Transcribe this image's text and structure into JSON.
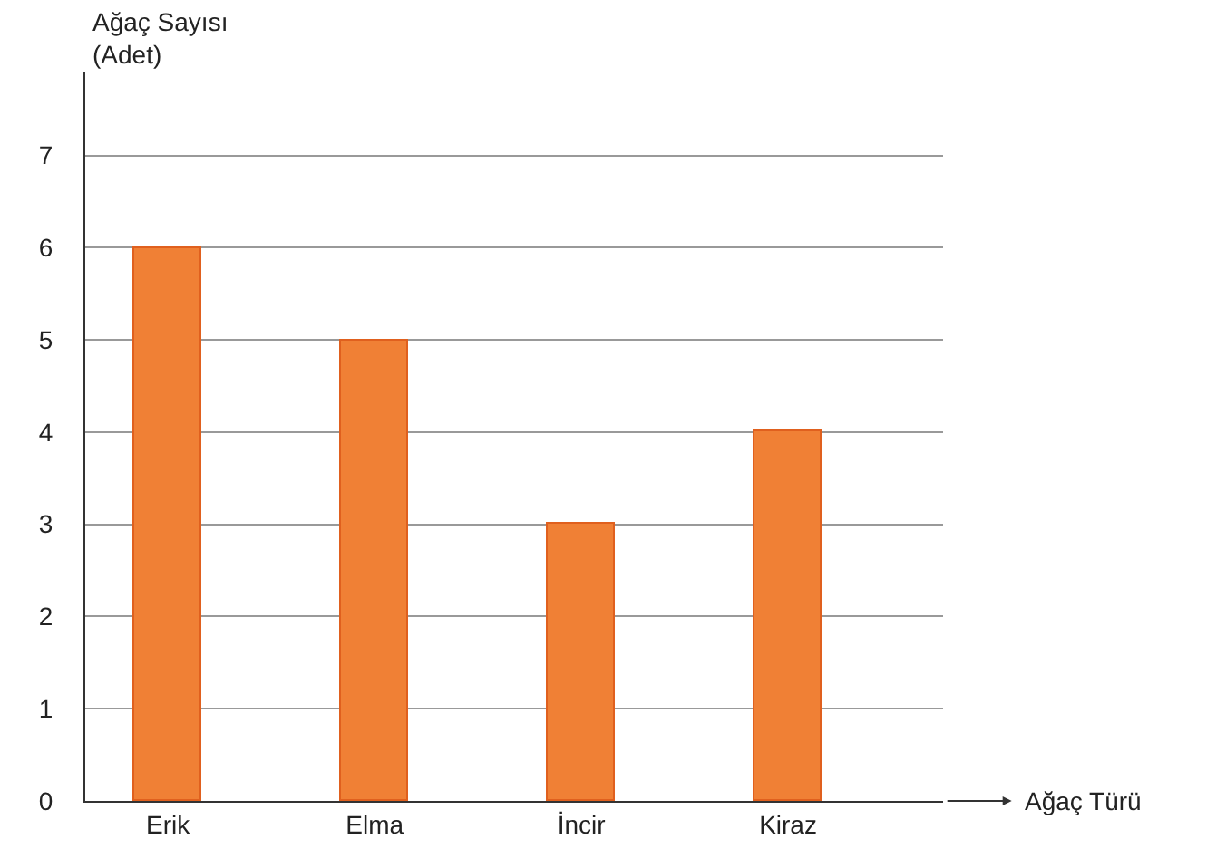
{
  "chart_data": {
    "type": "bar",
    "xlabel": "Ağaç Türü",
    "ylabel": "Ağaç Sayısı\n(Adet)",
    "categories": [
      "Erik",
      "Elma",
      "İncir",
      "Kiraz"
    ],
    "values": [
      6,
      5,
      3,
      4
    ],
    "color": "#f08035",
    "ylim": [
      0,
      7.9
    ],
    "yticks": [
      0,
      1,
      2,
      3,
      4,
      5,
      6,
      7
    ],
    "grid": "y",
    "legend": false
  }
}
